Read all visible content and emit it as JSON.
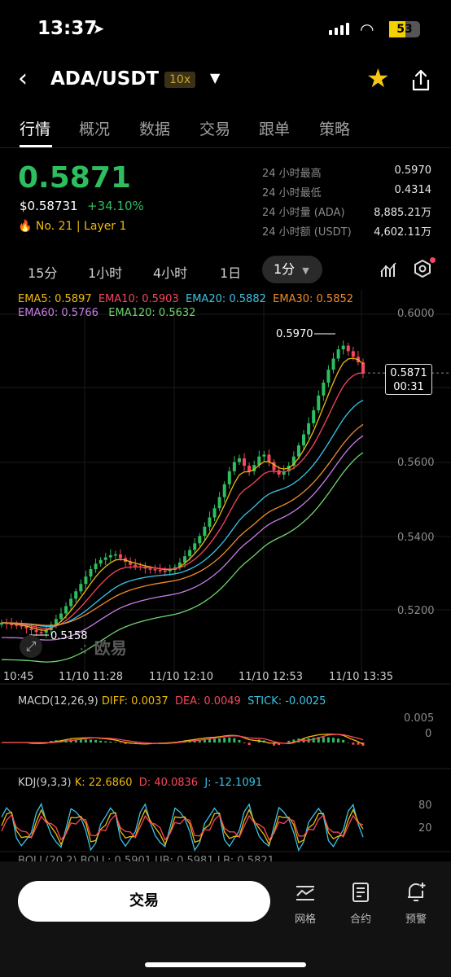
{
  "status_bar": {
    "time": "13:37",
    "location_icon": "location-arrow-icon",
    "battery": "53",
    "colors": {
      "battery": "#f5d100"
    }
  },
  "header": {
    "pair": "ADA/USDT",
    "leverage": "10x",
    "favorite_icon": "star-icon",
    "share_icon": "share-icon"
  },
  "tabs": [
    "行情",
    "概况",
    "数据",
    "交易",
    "跟单",
    "策略"
  ],
  "ticker": {
    "last_price": "0.5871",
    "usd_price": "$0.58731",
    "change": "+34.10%",
    "rank": "No. 21",
    "category": "Layer 1",
    "stats": [
      {
        "label": "24 小时最高",
        "value": "0.5970"
      },
      {
        "label": "24 小时最低",
        "value": "0.4314"
      },
      {
        "label": "24 小时量 (ADA)",
        "value": "8,885.21万"
      },
      {
        "label": "24 小时额 (USDT)",
        "value": "4,602.11万"
      }
    ],
    "colors": {
      "up": "#2ebd5f",
      "down": "#f6465d",
      "accent": "#f0b90b"
    }
  },
  "intervals": {
    "items": [
      "15分",
      "1小时",
      "4小时",
      "1日"
    ],
    "active": "1分"
  },
  "chart_data": {
    "type": "candlestick",
    "ema_legend": [
      {
        "label": "EMA5: 0.5897",
        "color": "#f0b90b"
      },
      {
        "label": "EMA10: 0.5903",
        "color": "#f6465d"
      },
      {
        "label": "EMA20: 0.5882",
        "color": "#3bc3e6"
      },
      {
        "label": "EMA30: 0.5852",
        "color": "#f08a28"
      },
      {
        "label": "EMA60: 0.5766",
        "color": "#c77ee6"
      },
      {
        "label": "EMA120: 0.5632",
        "color": "#6fd46f"
      }
    ],
    "y_ticks": [
      "0.6000",
      "0.5600",
      "0.5400",
      "0.5200"
    ],
    "x_ticks": [
      "10:45",
      "11/10 11:28",
      "11/10 12:10",
      "11/10 12:53",
      "11/10 13:35"
    ],
    "ylim": [
      0.51,
      0.603
    ],
    "high_marker": "0.5970",
    "low_marker": "0.5158",
    "last_price_tag": "0.5871",
    "countdown": "00:31",
    "watermark": "欧易",
    "close_series": [
      0.5195,
      0.5192,
      0.519,
      0.5188,
      0.5185,
      0.518,
      0.5175,
      0.517,
      0.5168,
      0.5175,
      0.519,
      0.5205,
      0.522,
      0.524,
      0.526,
      0.528,
      0.53,
      0.532,
      0.534,
      0.5355,
      0.5365,
      0.5372,
      0.5378,
      0.538,
      0.537,
      0.536,
      0.5352,
      0.5348,
      0.5345,
      0.5342,
      0.534,
      0.5338,
      0.5336,
      0.5335,
      0.5338,
      0.5345,
      0.5358,
      0.5375,
      0.5392,
      0.541,
      0.543,
      0.5455,
      0.548,
      0.5505,
      0.5535,
      0.557,
      0.5605,
      0.563,
      0.564,
      0.562,
      0.5605,
      0.5622,
      0.5645,
      0.565,
      0.563,
      0.5608,
      0.5596,
      0.5605,
      0.562,
      0.5645,
      0.5675,
      0.5705,
      0.5735,
      0.577,
      0.581,
      0.5845,
      0.588,
      0.591,
      0.5935,
      0.5945,
      0.593,
      0.5915,
      0.59,
      0.5871
    ],
    "macd": {
      "label": "MACD(12,26,9)",
      "diff": "DIFF: 0.0037",
      "dea": "DEA: 0.0049",
      "stick": "STICK: -0.0025",
      "ticks": [
        "0.005",
        "0"
      ]
    },
    "kdj": {
      "label": "KDJ(9,3,3)",
      "k": "K: 22.6860",
      "d": "D: 40.0836",
      "j": "J: -12.1091",
      "ticks": [
        "80",
        "20"
      ]
    },
    "boll_partial": "BOLL(20,2)  BOLL: 0.5901  UB: 0.5981  LB: 0.5821"
  },
  "bottom_bar": {
    "trade_label": "交易",
    "nav": [
      {
        "label": "网格",
        "icon": "grid-chart-icon"
      },
      {
        "label": "合约",
        "icon": "contract-doc-icon"
      },
      {
        "label": "预警",
        "icon": "bell-plus-icon"
      }
    ]
  }
}
